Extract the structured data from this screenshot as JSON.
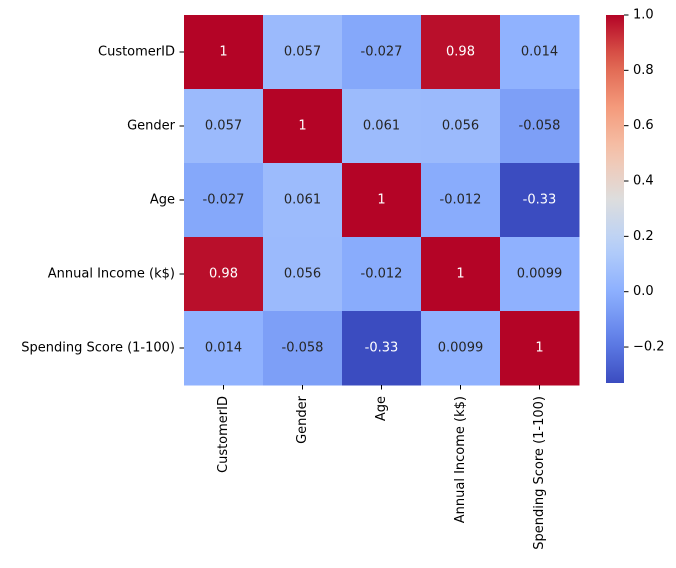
{
  "chart_data": {
    "type": "heatmap",
    "rows": [
      "CustomerID",
      "Gender",
      "Age",
      "Annual Income (k$)",
      "Spending Score (1-100)"
    ],
    "columns": [
      "CustomerID",
      "Gender",
      "Age",
      "Annual Income (k$)",
      "Spending Score (1-100)"
    ],
    "values": [
      [
        1,
        0.057,
        -0.027,
        0.98,
        0.014
      ],
      [
        0.057,
        1,
        0.061,
        0.056,
        -0.058
      ],
      [
        -0.027,
        0.061,
        1,
        -0.012,
        -0.33
      ],
      [
        0.98,
        0.056,
        -0.012,
        1,
        0.0099
      ],
      [
        0.014,
        -0.058,
        -0.33,
        0.0099,
        1
      ]
    ],
    "annotations": [
      [
        "1",
        "0.057",
        "-0.027",
        "0.98",
        "0.014"
      ],
      [
        "0.057",
        "1",
        "0.061",
        "0.056",
        "-0.058"
      ],
      [
        "-0.027",
        "0.061",
        "1",
        "-0.012",
        "-0.33"
      ],
      [
        "0.98",
        "0.056",
        "-0.012",
        "1",
        "0.0099"
      ],
      [
        "0.014",
        "-0.058",
        "-0.33",
        "0.0099",
        "1"
      ]
    ],
    "colormap": "coolwarm",
    "color_range": [
      -0.33,
      1.0
    ],
    "colorbar": {
      "ticks": [
        1.0,
        0.8,
        0.6,
        0.4,
        0.2,
        0.0,
        -0.2
      ],
      "tick_labels": [
        "1.0",
        "0.8",
        "0.6",
        "0.4",
        "0.2",
        "0.0",
        "−0.2"
      ]
    },
    "title": "",
    "xlabel": "",
    "ylabel": "",
    "xtick_rotation_deg": 90
  }
}
